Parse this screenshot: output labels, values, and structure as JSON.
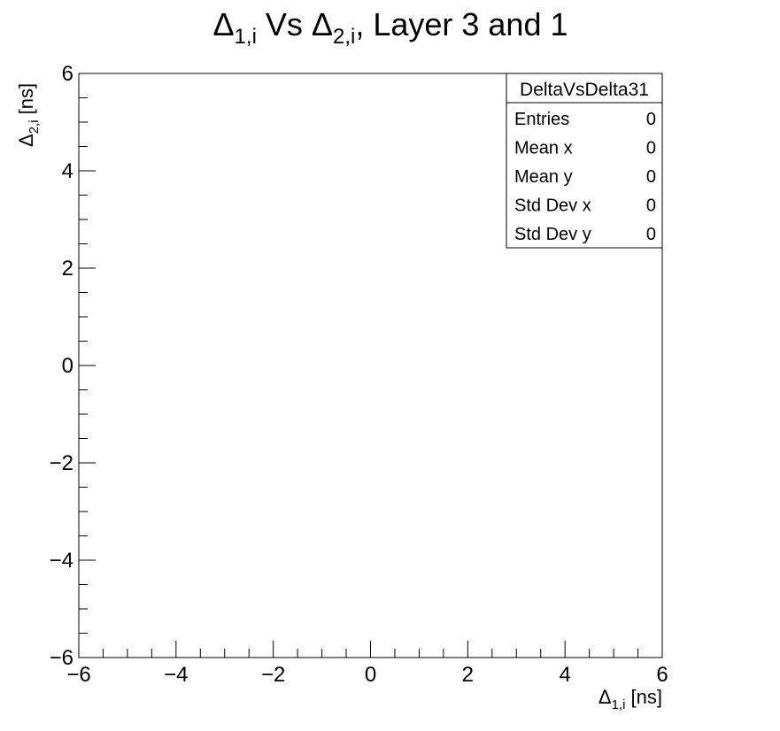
{
  "chart_data": {
    "type": "scatter",
    "title": {
      "main": "Δ",
      "sub1": "1,i",
      "mid": " Vs Δ",
      "sub2": "2,i",
      "tail": ", Layer 3 and 1"
    },
    "xlabel": {
      "main": "Δ",
      "sub": "1,i",
      "unit": " [ns]"
    },
    "ylabel": {
      "main": "Δ",
      "sub": "2,i",
      "unit": " [ns]"
    },
    "xlim": [
      -6,
      6
    ],
    "ylim": [
      -6,
      6
    ],
    "x_ticks": [
      "−6",
      "−4",
      "−2",
      "0",
      "2",
      "4",
      "6"
    ],
    "y_ticks": [
      "−6",
      "−4",
      "−2",
      "0",
      "2",
      "4",
      "6"
    ],
    "grid": false,
    "points": [],
    "stats_box": {
      "title": "DeltaVsDelta31",
      "placement": "top-right",
      "rows": [
        {
          "label": "Entries",
          "value": "0"
        },
        {
          "label": "Mean x",
          "value": "0"
        },
        {
          "label": "Mean y",
          "value": "0"
        },
        {
          "label": "Std Dev x",
          "value": "0"
        },
        {
          "label": "Std Dev y",
          "value": "0"
        }
      ]
    }
  }
}
